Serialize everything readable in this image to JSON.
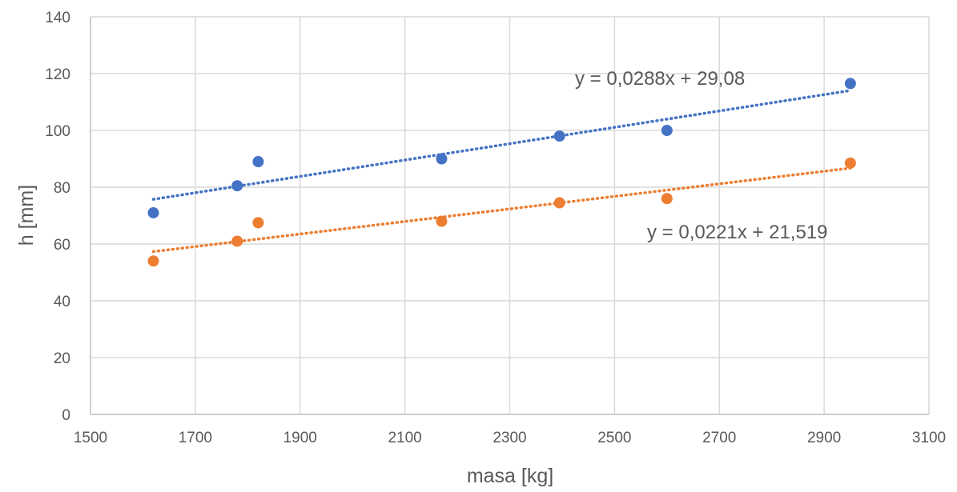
{
  "chart_data": {
    "type": "scatter",
    "title": "",
    "xlabel": "masa [kg]",
    "ylabel": "h [mm]",
    "xlim": [
      1500,
      3100
    ],
    "ylim": [
      0,
      140
    ],
    "xticks": [
      1500,
      1700,
      1900,
      2100,
      2300,
      2500,
      2700,
      2900,
      3100
    ],
    "yticks": [
      0,
      20,
      40,
      60,
      80,
      100,
      120,
      140
    ],
    "grid": true,
    "legend": "none",
    "series": [
      {
        "color": "#4472c4",
        "x": [
          1620,
          1780,
          1820,
          2170,
          2395,
          2600,
          2950
        ],
        "y": [
          71,
          80.5,
          89,
          90,
          98,
          100,
          116.5
        ],
        "trendline": {
          "type": "linear",
          "slope": 0.0288,
          "intercept": 29.08,
          "x_range": [
            1620,
            2950
          ],
          "equation": "y = 0,0288x + 29,08"
        }
      },
      {
        "color": "#ed7d31",
        "x": [
          1620,
          1780,
          1820,
          2170,
          2395,
          2600,
          2950
        ],
        "y": [
          54,
          61,
          67.5,
          68,
          74.5,
          76,
          88.5
        ],
        "trendline": {
          "type": "linear",
          "slope": 0.0221,
          "intercept": 21.519,
          "x_range": [
            1620,
            2950
          ],
          "equation": "y = 0,0221x + 21,519"
        }
      }
    ]
  }
}
